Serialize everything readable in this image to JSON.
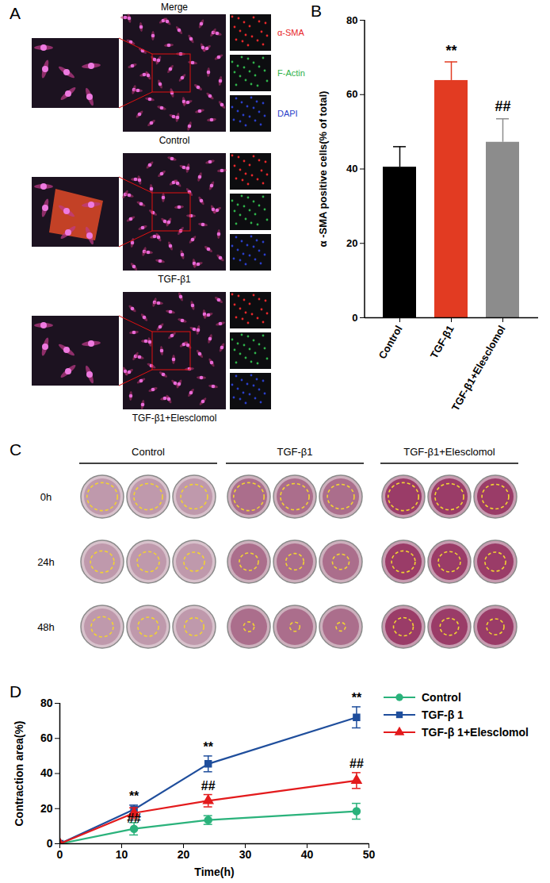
{
  "panel_a": {
    "letter": "A",
    "header": "Merge",
    "captions": [
      "Control",
      "TGF-β1",
      "TGF-β1+Elesclomol"
    ],
    "channels": [
      {
        "label": "α-SMA",
        "color": "#e8282b"
      },
      {
        "label": "F-Actin",
        "color": "#2fb24a"
      },
      {
        "label": "DAPI",
        "color": "#2b3fc9"
      }
    ]
  },
  "chart_data": [
    {
      "panel": "B",
      "type": "bar",
      "categories": [
        "Control",
        "TGF-β1",
        "TGF-β1+Elesclomol"
      ],
      "values": [
        40.5,
        63.8,
        47.2
      ],
      "errors": [
        5.5,
        5.0,
        6.3
      ],
      "colors": [
        "#000000",
        "#e23b22",
        "#8c8c8c"
      ],
      "ylabel": "α -SMA positive cells(% of total)",
      "ylim": [
        0,
        80
      ],
      "yticks": [
        0,
        20,
        40,
        60,
        80
      ],
      "annotations": [
        {
          "category": "TGF-β1",
          "y": 70.5,
          "text": "**"
        },
        {
          "category": "TGF-β1+Elesclomol",
          "y": 55.5,
          "text": "##"
        }
      ]
    },
    {
      "panel": "D",
      "type": "line",
      "xlabel": "Time(h)",
      "ylabel": "Contraction area(%)",
      "x": [
        0,
        12,
        24,
        48
      ],
      "xlim": [
        0,
        50
      ],
      "xticks": [
        0,
        10,
        20,
        30,
        40,
        50
      ],
      "ylim": [
        0,
        80
      ],
      "yticks": [
        0,
        20,
        40,
        60,
        80
      ],
      "legend": "upper right",
      "series": [
        {
          "name": "Control",
          "color": "#2ab27b",
          "marker": "circle",
          "values": [
            0,
            8.5,
            13.5,
            18.5
          ],
          "errors": [
            0,
            3.5,
            2.5,
            4.5
          ]
        },
        {
          "name": "TGF-β 1",
          "color": "#1f4e9c",
          "marker": "square",
          "values": [
            0,
            19.5,
            45.5,
            72.0
          ],
          "errors": [
            0,
            2.5,
            4.5,
            6.0
          ]
        },
        {
          "name": "TGF-β 1+Elesclomol",
          "color": "#e31a1c",
          "marker": "triangle",
          "values": [
            0,
            17.5,
            24.5,
            36.0
          ],
          "errors": [
            0,
            3.0,
            3.5,
            4.5
          ]
        }
      ],
      "annotations": [
        {
          "x": 12,
          "y": 24.5,
          "text": "**"
        },
        {
          "x": 12,
          "y": 12.0,
          "text": "##"
        },
        {
          "x": 24,
          "y": 52.5,
          "text": "**"
        },
        {
          "x": 24,
          "y": 30.5,
          "text": "##"
        },
        {
          "x": 48,
          "y": 80.5,
          "text": "**"
        },
        {
          "x": 48,
          "y": 43.0,
          "text": "##"
        }
      ]
    }
  ],
  "panel_c": {
    "letter": "C",
    "groups": [
      "Control",
      "TGF-β1",
      "TGF-β1+Elesclomol"
    ],
    "times": [
      "0h",
      "24h",
      "48h"
    ]
  }
}
